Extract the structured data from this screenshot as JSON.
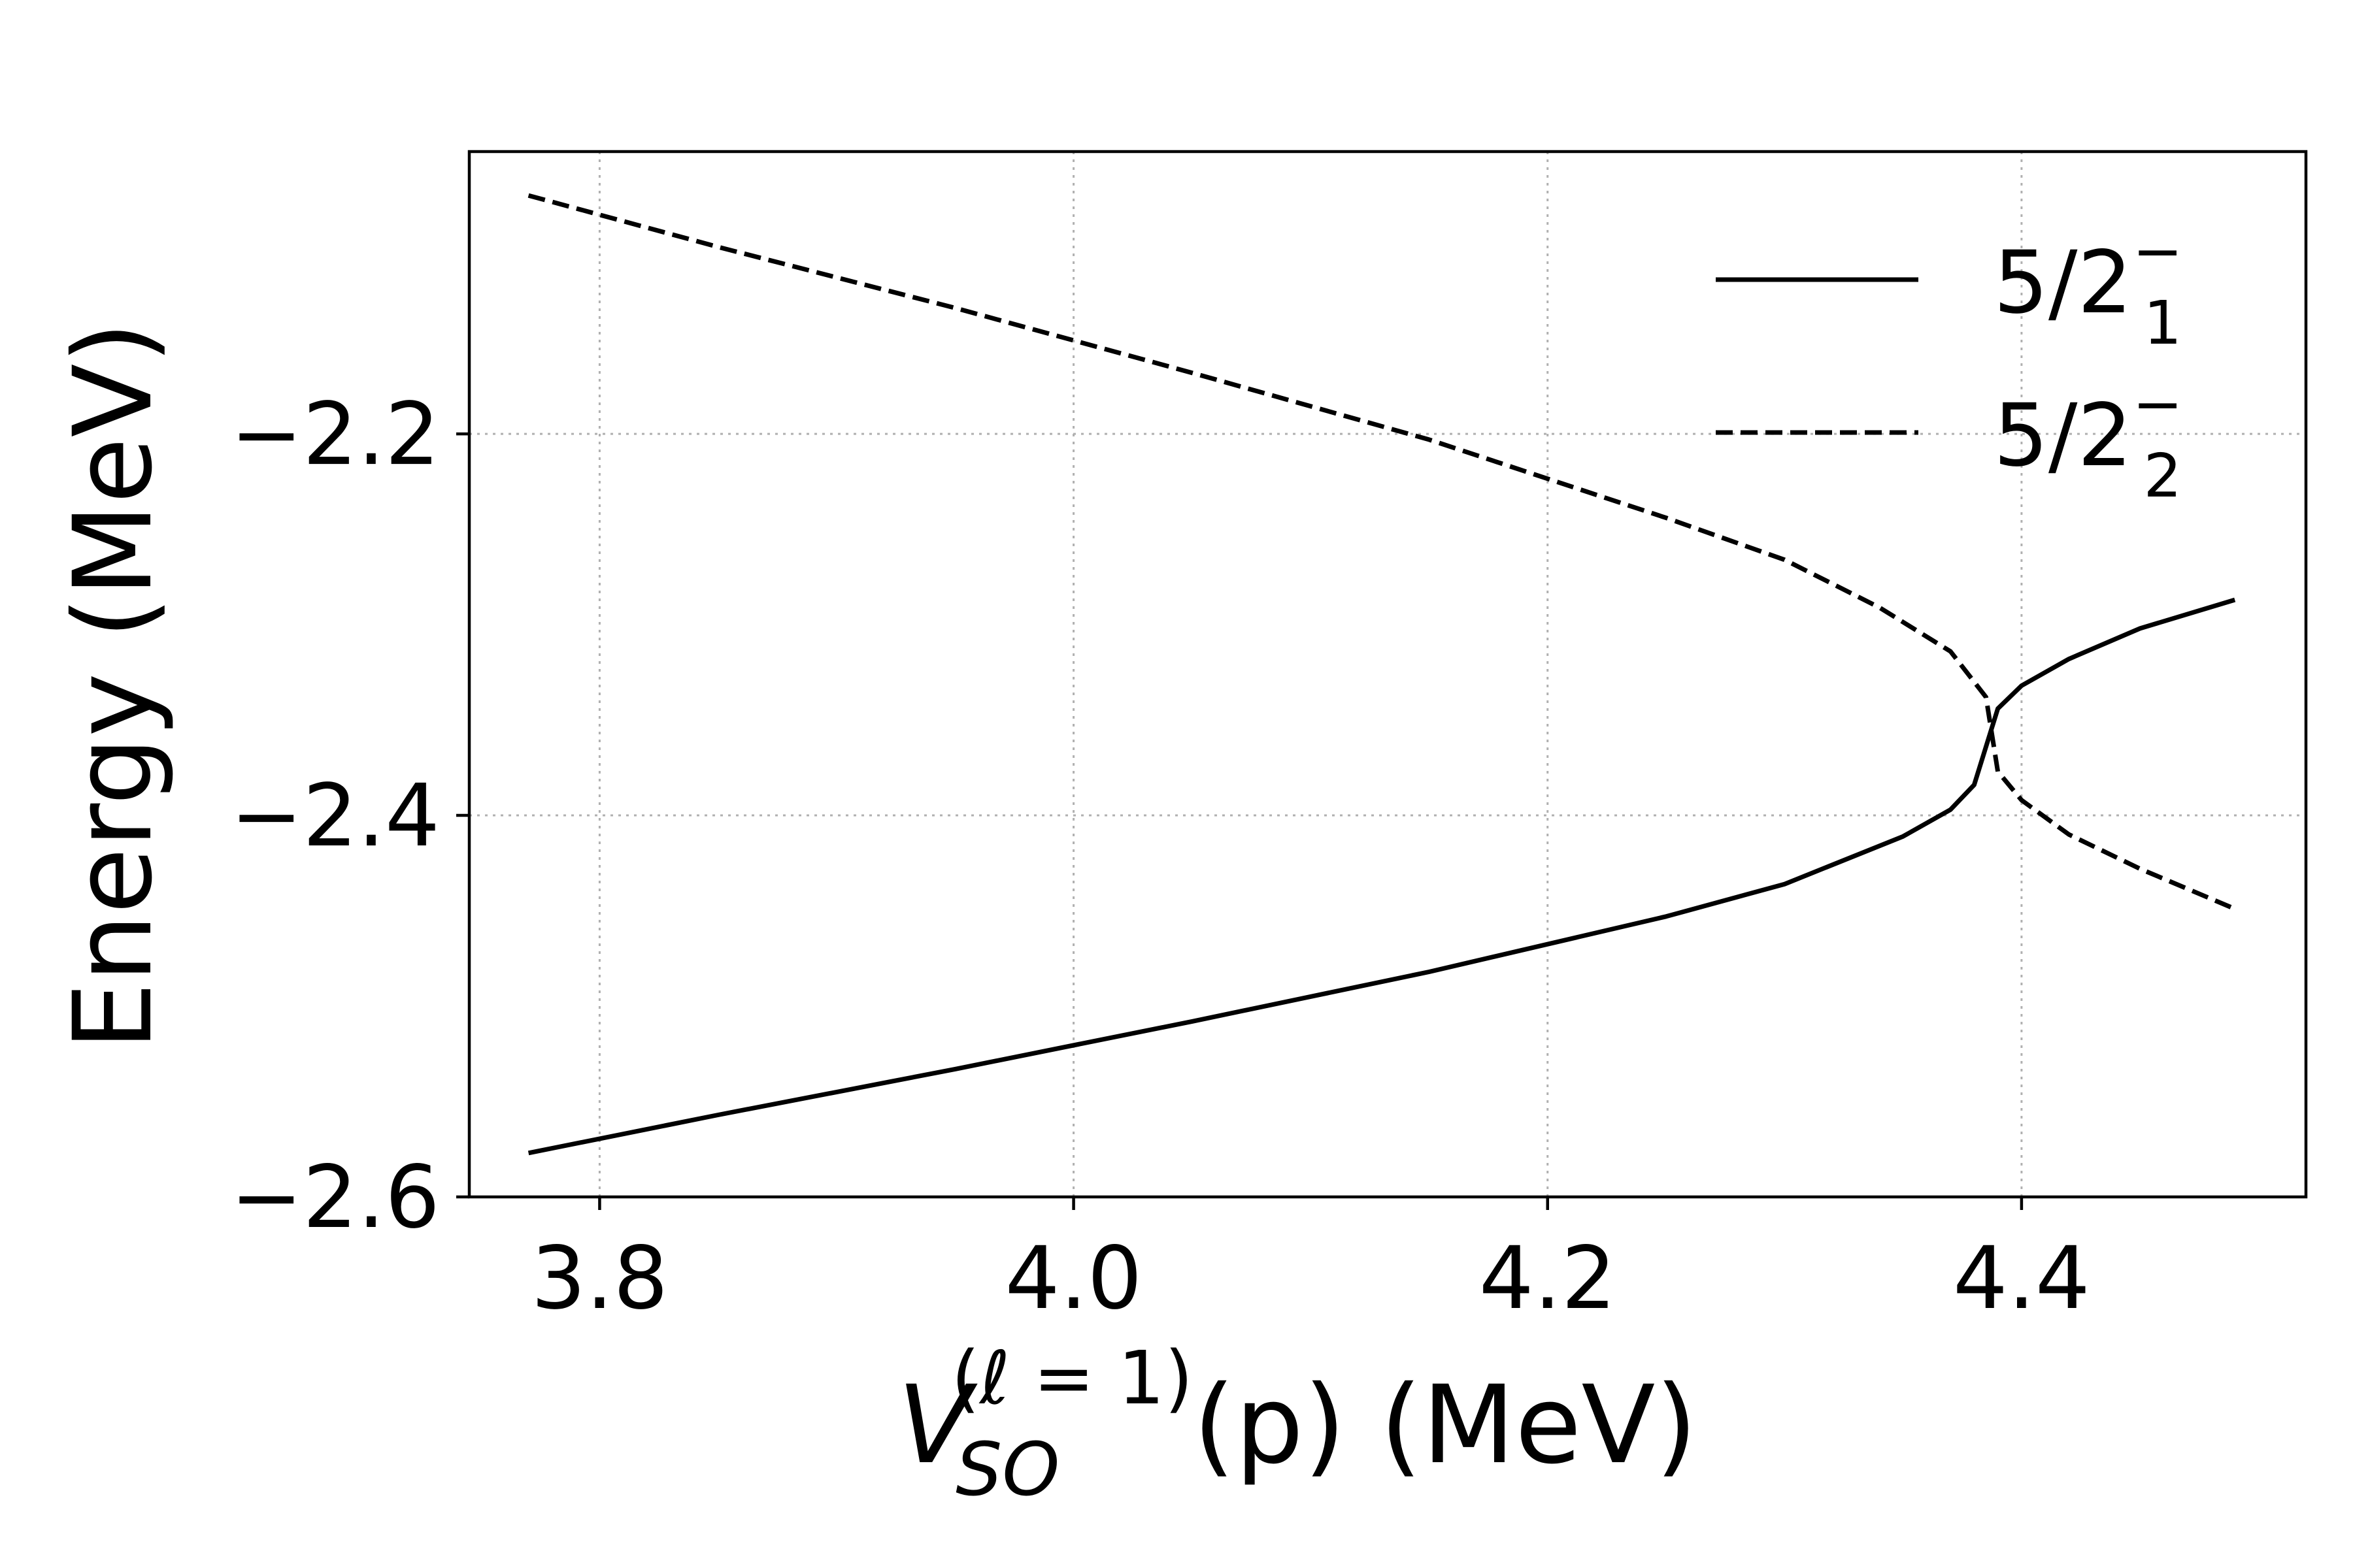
{
  "chart_data": {
    "type": "line",
    "x_axis": {
      "label_main": "V",
      "label_sub": "SO",
      "label_sup": "(ℓ = 1)",
      "label_rest": "(p) (MeV)",
      "range": [
        3.745,
        4.52
      ],
      "ticks": [
        3.8,
        4.0,
        4.2,
        4.4
      ],
      "tick_labels": [
        "3.8",
        "4.0",
        "4.2",
        "4.4"
      ]
    },
    "y_axis": {
      "label": "Energy (MeV)",
      "range": [
        -2.6,
        -2.052
      ],
      "ticks": [
        -2.2,
        -2.4,
        -2.6
      ],
      "tick_labels": [
        "−2.2",
        "−2.4",
        "−2.6"
      ]
    },
    "grid": true,
    "legend_position": "top-right",
    "series": [
      {
        "name_base": "5/2",
        "name_sub": "1",
        "name_sup": "−",
        "style": "solid",
        "color": "#000000",
        "x": [
          3.77,
          3.85,
          3.95,
          4.05,
          4.15,
          4.25,
          4.3,
          4.35,
          4.37,
          4.38,
          4.39,
          4.4,
          4.42,
          4.45,
          4.49
        ],
        "y": [
          -2.577,
          -2.557,
          -2.533,
          -2.508,
          -2.482,
          -2.453,
          -2.436,
          -2.411,
          -2.397,
          -2.384,
          -2.344,
          -2.332,
          -2.318,
          -2.302,
          -2.287
        ]
      },
      {
        "name_base": "5/2",
        "name_sub": "2",
        "name_sup": "−",
        "style": "dashed",
        "color": "#000000",
        "x": [
          3.77,
          3.85,
          3.95,
          4.05,
          4.15,
          4.25,
          4.3,
          4.34,
          4.37,
          4.385,
          4.39,
          4.4,
          4.42,
          4.45,
          4.49
        ],
        "y": [
          -2.075,
          -2.102,
          -2.134,
          -2.168,
          -2.203,
          -2.244,
          -2.266,
          -2.291,
          -2.314,
          -2.338,
          -2.377,
          -2.392,
          -2.41,
          -2.428,
          -2.449
        ]
      }
    ]
  }
}
